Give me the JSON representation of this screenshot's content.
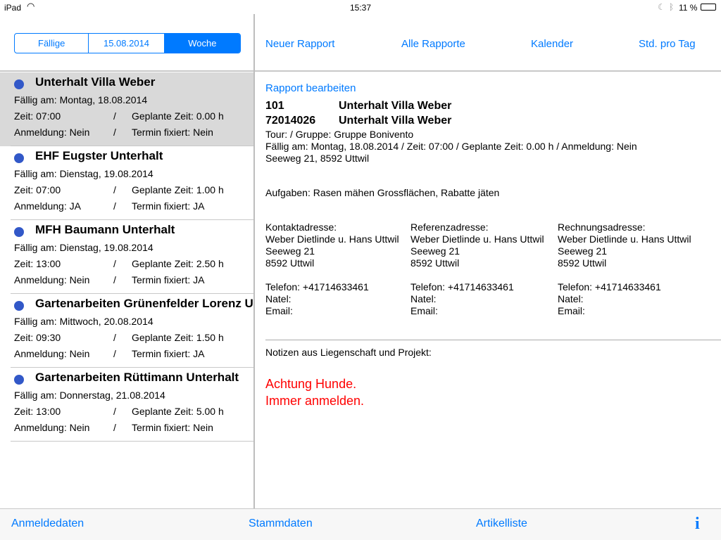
{
  "status": {
    "device": "iPad",
    "time": "15:37",
    "battery": "11 %",
    "icons": [
      "wifi-icon",
      "moon-icon",
      "bluetooth-icon",
      "battery-icon"
    ]
  },
  "segments": [
    "Fällige",
    "15.08.2014",
    "Woche"
  ],
  "selected_segment": "Woche",
  "nav": [
    "Neuer Rapport",
    "Alle Rapporte",
    "Kalender",
    "Std. pro Tag"
  ],
  "list": [
    {
      "title": "Unterhalt Villa Weber",
      "due": "Fällig am:  Montag, 18.08.2014",
      "time": "Zeit: 07:00",
      "planned": "Geplante Zeit: 0.00 h",
      "reg": "Anmeldung: Nein",
      "fixed": "Termin fixiert: Nein",
      "sep": "/"
    },
    {
      "title": "EHF Eugster Unterhalt",
      "due": "Fällig am:  Dienstag, 19.08.2014",
      "time": "Zeit: 07:00",
      "planned": "Geplante Zeit: 1.00 h",
      "reg": "Anmeldung: JA",
      "fixed": "Termin fixiert: JA",
      "sep": "/"
    },
    {
      "title": "MFH Baumann Unterhalt",
      "due": "Fällig am:  Dienstag, 19.08.2014",
      "time": "Zeit: 13:00",
      "planned": "Geplante Zeit: 2.50 h",
      "reg": "Anmeldung: Nein",
      "fixed": "Termin fixiert: JA",
      "sep": "/"
    },
    {
      "title": "Gartenarbeiten Grünenfelder Lorenz Unterhalt",
      "due": "Fällig am:  Mittwoch, 20.08.2014",
      "time": "Zeit: 09:30",
      "planned": "Geplante Zeit: 1.50 h",
      "reg": "Anmeldung: Nein",
      "fixed": "Termin fixiert: JA",
      "sep": "/"
    },
    {
      "title": "Gartenarbeiten Rüttimann Unterhalt",
      "due": "Fällig am:  Donnerstag, 21.08.2014",
      "time": "Zeit: 13:00",
      "planned": "Geplante Zeit: 5.00 h",
      "reg": "Anmeldung: Nein",
      "fixed": "Termin fixiert: Nein",
      "sep": "/"
    }
  ],
  "detail": {
    "edit_link": "Rapport bearbeiten",
    "id1": "101",
    "name1": "Unterhalt Villa Weber",
    "id2": "72014026",
    "name2": "Unterhalt Villa Weber",
    "tour": "Tour: / Gruppe: Gruppe Bonivento",
    "due": "Fällig am: Montag, 18.08.2014 / Zeit: 07:00 / Geplante Zeit: 0.00 h / Anmeldung: Nein",
    "address": "Seeweg 21, 8592 Uttwil",
    "tasks": "Aufgaben: Rasen mähen Grossflächen, Rabatte jäten",
    "columns": [
      {
        "heading": "Kontaktadresse:",
        "name": "Weber Dietlinde u. Hans Uttwil",
        "street": "Seeweg 21",
        "city": "8592 Uttwil",
        "phone": "Telefon:  +41714633461",
        "natel": "Natel:",
        "email": "Email:"
      },
      {
        "heading": "Referenzadresse:",
        "name": "Weber Dietlinde u. Hans Uttwil",
        "street": "Seeweg 21",
        "city": "8592 Uttwil",
        "phone": "Telefon:  +41714633461",
        "natel": "Natel:",
        "email": "Email:"
      },
      {
        "heading": "Rechnungsadresse:",
        "name": "Weber Dietlinde u. Hans Uttwil",
        "street": "Seeweg 21",
        "city": "8592 Uttwil",
        "phone": "Telefon:  +41714633461",
        "natel": "Natel:",
        "email": "Email:"
      }
    ],
    "notes_label": "Notizen aus Liegenschaft und Projekt:",
    "notes": [
      "Achtung Hunde.",
      "Immer anmelden."
    ],
    "notes_color": "#ff0000"
  },
  "bottom": [
    "Anmeldedaten",
    "Stammdaten",
    "Artikelliste"
  ],
  "bottom_icon": "info-icon",
  "accent": "#007aff"
}
